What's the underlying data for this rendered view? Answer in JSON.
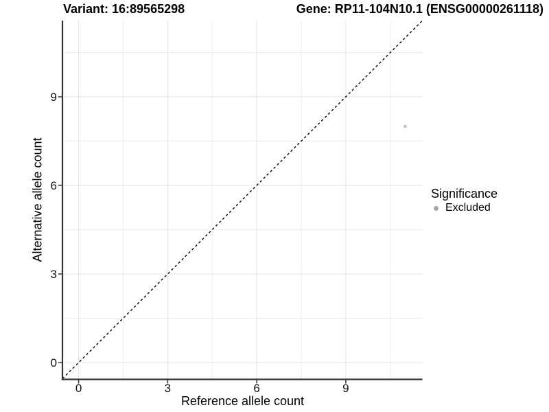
{
  "header": {
    "variant_title": "Variant: 16:89565298",
    "gene_title": "Gene: RP11-104N10.1 (ENSG00000261118)"
  },
  "chart_data": {
    "type": "scatter",
    "title_left": "Variant: 16:89565298",
    "title_right": "Gene: RP11-104N10.1 (ENSG00000261118)",
    "xlabel": "Reference allele count",
    "ylabel": "Alternative allele count",
    "xlim": [
      -0.545,
      11.58
    ],
    "ylim": [
      -0.57,
      11.58
    ],
    "x_ticks": [
      0,
      3,
      6,
      9
    ],
    "y_ticks": [
      0,
      3,
      6,
      9
    ],
    "grid": {
      "major": true,
      "minor": true,
      "minor_step": 1.5,
      "major_color": "#e2e2e2",
      "minor_color": "#ededed"
    },
    "identity_line": {
      "slope": 1,
      "intercept": 0,
      "style": "dashed",
      "color": "#000000"
    },
    "axis_color": "#333333",
    "series": [
      {
        "name": "Excluded",
        "color": "#bdbdbd",
        "points": [
          {
            "x": 11,
            "y": 8
          }
        ]
      }
    ],
    "legend": {
      "title": "Significance",
      "position": "right",
      "items": [
        {
          "label": "Excluded",
          "marker": "circle",
          "color": "#a6a6a6"
        }
      ]
    }
  }
}
